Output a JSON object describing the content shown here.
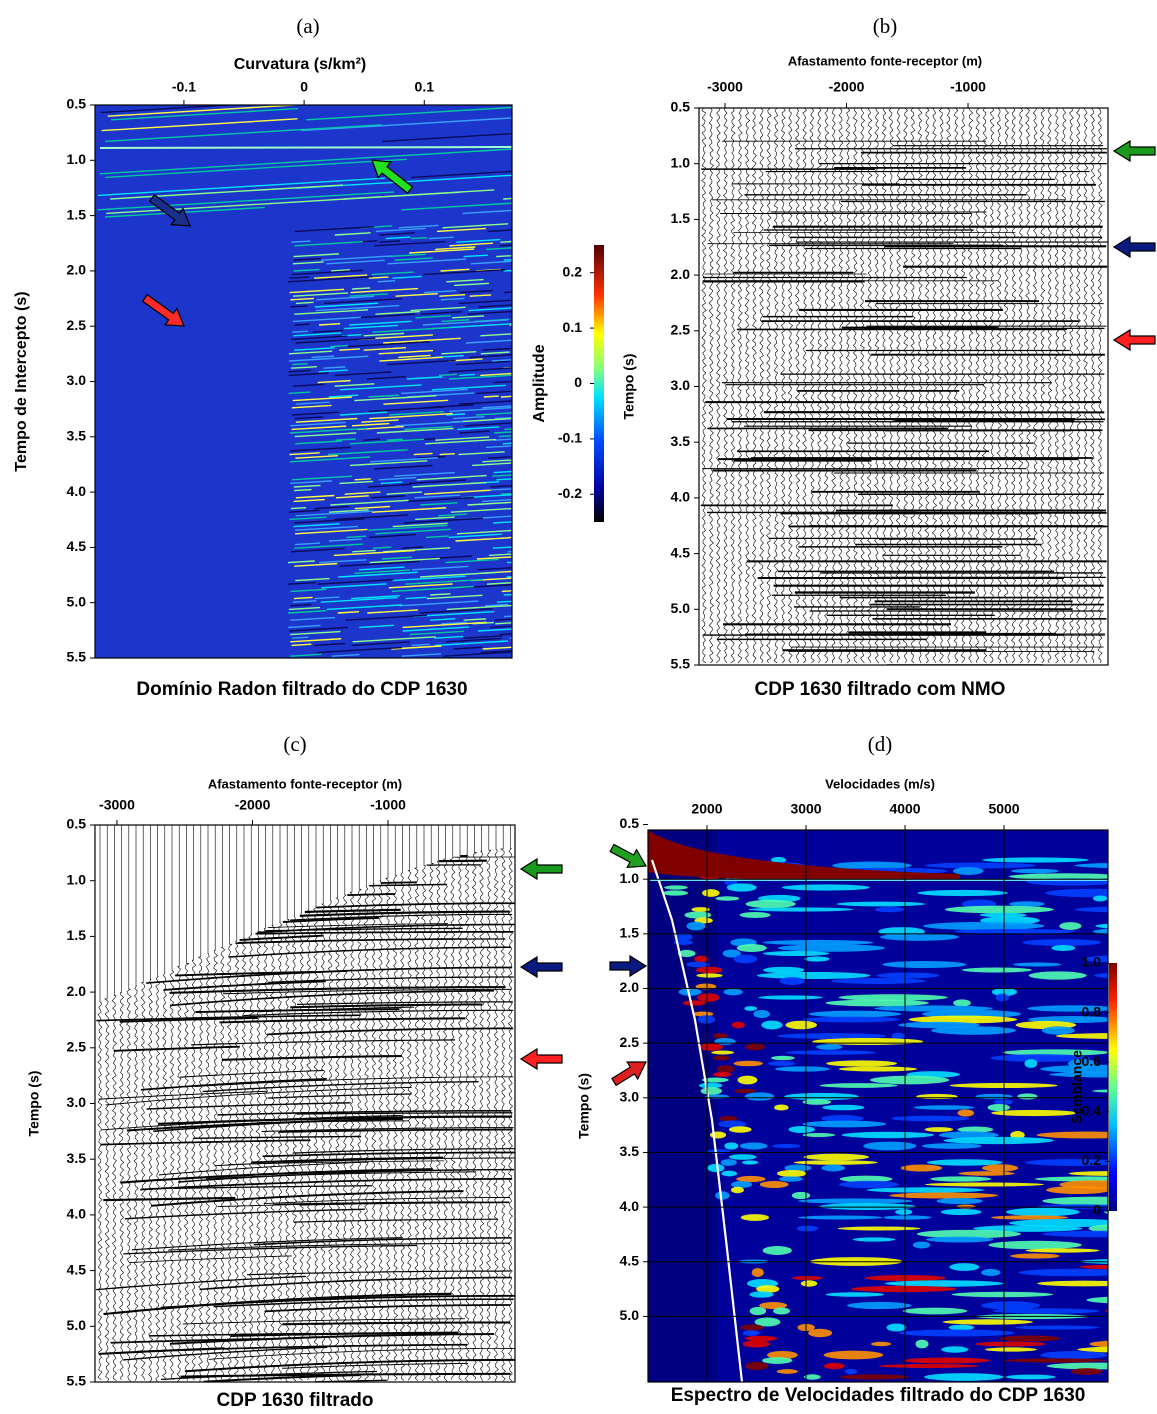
{
  "chart_data": [
    {
      "type": "heatmap",
      "panel_label": "(a)",
      "title": "Domínio Radon filtrado do CDP 1630",
      "xlabel": "Curvatura (s/km²)",
      "ylabel": "Tempo de Intercepto (s)",
      "xlim": [
        -0.174,
        0.173
      ],
      "xticks": [
        -0.1,
        0,
        0.1
      ],
      "ylim": [
        0.5,
        5.5
      ],
      "yticks": [
        0.5,
        {
          "value": 1,
          "label": "1.0"
        },
        1.5,
        {
          "value": 2,
          "label": "2.0"
        },
        2.5,
        {
          "value": 3,
          "label": "3.0"
        },
        3.5,
        {
          "value": 4,
          "label": "4.0"
        },
        4.5,
        {
          "value": 5,
          "label": "5.0"
        },
        5.5
      ],
      "grid": false,
      "colorbar": {
        "label": "Amplitude",
        "lim": [
          -0.25,
          0.25
        ],
        "ticks": [
          -0.2,
          -0.1,
          0,
          0.1,
          0.2
        ]
      }
    },
    {
      "type": "wiggle",
      "panel_label": "(b)",
      "title": "CDP 1630 filtrado com NMO",
      "xlabel": "Afastamento fonte-receptor (m)",
      "ylabel": "Tempo (s)",
      "xlim": [
        -3214,
        152
      ],
      "xticks": [
        -3000,
        -2000,
        -1000
      ],
      "ylim": [
        0.5,
        5.5
      ],
      "yticks": [
        0.5,
        {
          "value": 1,
          "label": "1.0"
        },
        1.5,
        {
          "value": 2,
          "label": "2.0"
        },
        2.5,
        {
          "value": 3,
          "label": "3.0"
        },
        3.5,
        {
          "value": 4,
          "label": "4.0"
        },
        4.5,
        {
          "value": 5,
          "label": "5.0"
        },
        5.5
      ],
      "grid": false
    },
    {
      "type": "wiggle",
      "panel_label": "(c)",
      "title": "CDP 1630 filtrado",
      "xlabel": "Afastamento fonte-receptor (m)",
      "ylabel": "Tempo (s)",
      "xlim": [
        -3162,
        -63
      ],
      "xticks": [
        -3000,
        -2000,
        -1000
      ],
      "ylim": [
        0.5,
        5.5
      ],
      "yticks": [
        0.5,
        {
          "value": 1,
          "label": "1.0"
        },
        1.5,
        {
          "value": 2,
          "label": "2.0"
        },
        2.5,
        {
          "value": 3,
          "label": "3.0"
        },
        3.5,
        {
          "value": 4,
          "label": "4.0"
        },
        4.5,
        {
          "value": 5,
          "label": "5.0"
        },
        5.5
      ],
      "grid": false
    },
    {
      "type": "semblance",
      "panel_label": "(d)",
      "title": "Espectro de Velocidades filtrado do CDP 1630",
      "xlabel": "Velocidades (m/s)",
      "ylabel": "Tempo (s)",
      "xlim": [
        1404,
        6050
      ],
      "xticks": [
        2000,
        3000,
        4000,
        5000
      ],
      "ylim": [
        0.55,
        5.6
      ],
      "yticks": [
        0.5,
        {
          "value": 1,
          "label": "1.0"
        },
        1.5,
        {
          "value": 2,
          "label": "2.0"
        },
        2.5,
        {
          "value": 3,
          "label": "3.0"
        },
        3.5,
        {
          "value": 4,
          "label": "4.0"
        },
        4.5,
        {
          "value": 5,
          "label": "5.0"
        }
      ],
      "grid": true,
      "colorbar": {
        "label": "Semblance",
        "lim": [
          0,
          1
        ],
        "ticks": [
          0,
          0.2,
          0.4,
          0.6,
          0.8,
          {
            "value": 1,
            "label": "1.0"
          }
        ]
      }
    }
  ]
}
